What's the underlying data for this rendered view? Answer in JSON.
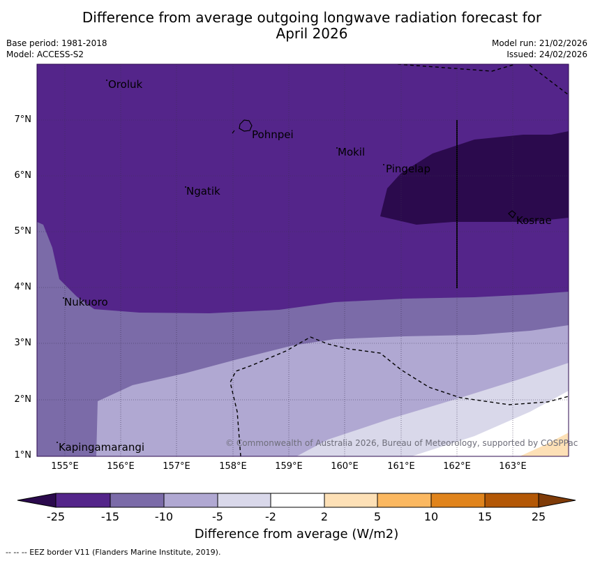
{
  "title_line1": "Difference from average outgoing longwave radiation forecast for",
  "title_line2": "April 2026",
  "meta": {
    "base_period": "Base period: 1981-2018",
    "model": "Model: ACCESS-S2",
    "model_run": "Model run: 21/02/2026",
    "issued": "Issued: 24/02/2026"
  },
  "axes": {
    "lat_labels": [
      "7°N",
      "6°N",
      "5°N",
      "4°N",
      "3°N",
      "2°N",
      "1°N"
    ],
    "lon_labels": [
      "155°E",
      "156°E",
      "157°E",
      "158°E",
      "159°E",
      "160°E",
      "161°E",
      "162°E",
      "163°E"
    ]
  },
  "places": [
    "Oroluk",
    "Pohnpei",
    "Mokil",
    "Pingelap",
    "Ngatik",
    "Kosrae",
    "Nukuoro",
    "Kapingamarangi"
  ],
  "copyright": "© Commonwealth of Australia 2026, Bureau of Meteorology, supported by COSPPac",
  "colorbar": {
    "title": "Difference from average (W/m2)",
    "ticks": [
      "-25",
      "-15",
      "-10",
      "-5",
      "-2",
      "2",
      "5",
      "10",
      "15",
      "25"
    ],
    "colors": [
      "#2b0a4d",
      "#54258a",
      "#7b6ba8",
      "#b0a8d2",
      "#d9d8ea",
      "#ffffff",
      "#fde0b6",
      "#fbb861",
      "#e0841c",
      "#b35806",
      "#7f3b08"
    ]
  },
  "footnote": "-- -- -- EEZ border V11 (Flanders Marine Institute, 2019)."
}
